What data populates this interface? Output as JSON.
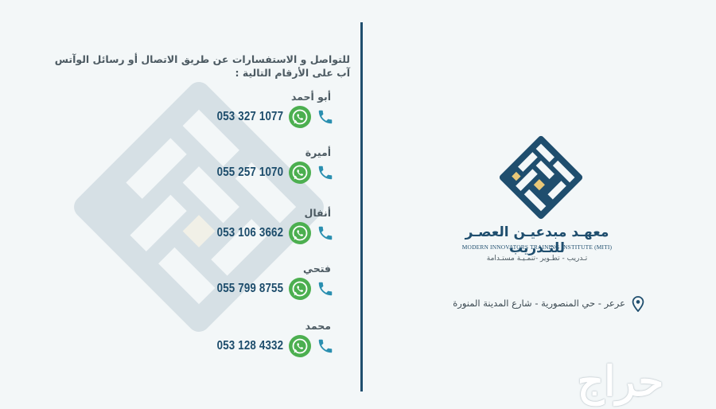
{
  "intro_text": "للتواصل و الاستفسارات عن طريق الاتصال أو رسائل الوآتس آب على الأرقام التالية :",
  "contacts": [
    {
      "name": "أبو أحمد",
      "number": "053 327 1077"
    },
    {
      "name": "أميرة",
      "number": "055 257 1070"
    },
    {
      "name": "أنفال",
      "number": "053 106 3662"
    },
    {
      "name": "فتحي",
      "number": "055 799 8755"
    },
    {
      "name": "محمد",
      "number": "053 128 4332"
    }
  ],
  "organization": {
    "name_ar": "معهـد مبدعيـن العصـر للتـدريب",
    "name_en": "MODERN INNOVATORS TRAINING INSTITUTE (MITI)",
    "tagline": "تـدريب - تطـوير -تنمـيـة مستـدامة"
  },
  "address": "عرعر - حي المنصورية - شارع المدينة المنورة",
  "watermark_text": "حراج",
  "colors": {
    "background": "#f3f7f8",
    "primary": "#1f4e6e",
    "accent": "#e9c878",
    "whatsapp": "#4caf50",
    "phone_icon": "#2a8fb0"
  },
  "icons": {
    "phone": "phone-icon",
    "whatsapp": "whatsapp-icon",
    "location": "location-pin-icon"
  }
}
